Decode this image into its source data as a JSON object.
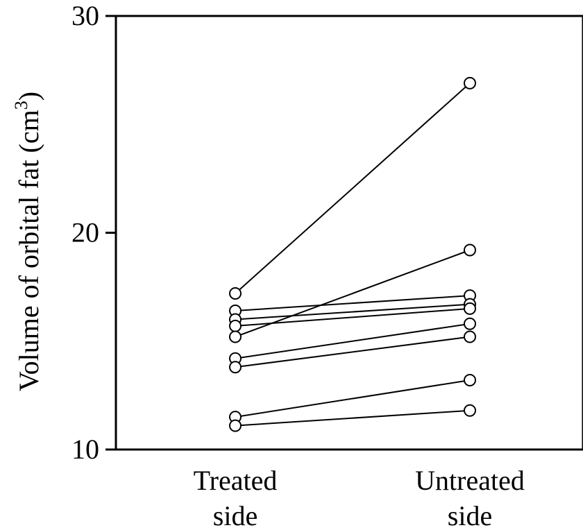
{
  "chart_data": {
    "type": "line",
    "title": "",
    "xlabel": "",
    "ylabel": {
      "main": "Volume of orbital fat (cm",
      "superscript": "3",
      "close": ")"
    },
    "ylim": [
      10,
      30
    ],
    "yticks": [
      "10",
      "20",
      "30"
    ],
    "ytick_values": [
      10,
      20,
      30
    ],
    "categories": [
      {
        "line1": "Treated",
        "line2": "side"
      },
      {
        "line1": "Untreated",
        "line2": "side"
      }
    ],
    "grid": false,
    "legend": "none",
    "marker": "open-circle",
    "colors": {
      "line": "#000000",
      "marker_fill": "#ffffff",
      "axis": "#000000"
    },
    "series": [
      {
        "values": [
          17.2,
          26.9
        ]
      },
      {
        "values": [
          16.4,
          17.1
        ]
      },
      {
        "values": [
          16.0,
          16.7
        ]
      },
      {
        "values": [
          15.7,
          16.5
        ]
      },
      {
        "values": [
          15.2,
          19.2
        ]
      },
      {
        "values": [
          14.2,
          15.8
        ]
      },
      {
        "values": [
          13.8,
          15.2
        ]
      },
      {
        "values": [
          11.5,
          13.2
        ]
      },
      {
        "values": [
          11.1,
          11.8
        ]
      }
    ]
  }
}
